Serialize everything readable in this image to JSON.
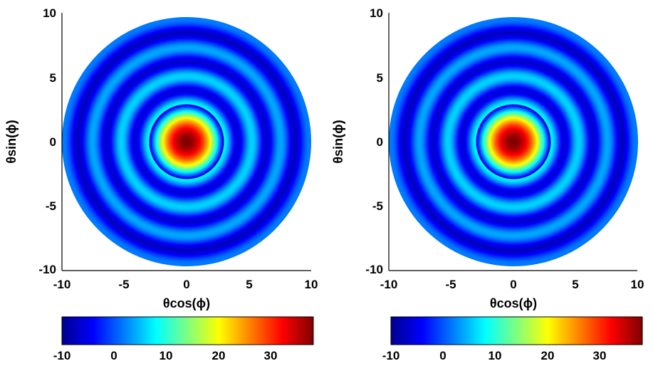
{
  "chart_data": [
    {
      "type": "heatmap",
      "title": "",
      "xlabel": "θcos(ϕ)",
      "ylabel": "θsin(ϕ)",
      "xlim": [
        -10,
        10
      ],
      "ylim": [
        -10,
        10
      ],
      "xticks": [
        "-10",
        "-5",
        "0",
        "5",
        "10"
      ],
      "yticks": [
        "10",
        "5",
        "0",
        "-5",
        "-10"
      ],
      "domain": "circular, radius 10",
      "colorscale": "jet",
      "clim": [
        -10,
        38
      ],
      "colorbar": {
        "orientation": "horizontal",
        "location": "bottom",
        "ticks": [
          "-10",
          "0",
          "10",
          "20",
          "30"
        ]
      },
      "pattern": {
        "peak_value": 38,
        "central_lobe_radius": 3.0,
        "ring_period": 2.3,
        "ring_peak_value": 8,
        "trough_value": -10
      }
    },
    {
      "type": "heatmap",
      "title": "",
      "xlabel": "θcos(ϕ)",
      "ylabel": "θsin(ϕ)",
      "xlim": [
        -10,
        10
      ],
      "ylim": [
        -10,
        10
      ],
      "xticks": [
        "-10",
        "-5",
        "0",
        "5",
        "10"
      ],
      "yticks": [
        "10",
        "5",
        "0",
        "-5",
        "-10"
      ],
      "domain": "circular, radius 10",
      "colorscale": "jet",
      "clim": [
        -10,
        38
      ],
      "colorbar": {
        "orientation": "horizontal",
        "location": "bottom",
        "ticks": [
          "-10",
          "0",
          "10",
          "20",
          "30"
        ]
      },
      "pattern": {
        "peak_value": 38,
        "central_lobe_radius": 3.0,
        "ring_period": 2.3,
        "ring_peak_value": 8,
        "trough_value": -10
      }
    }
  ]
}
